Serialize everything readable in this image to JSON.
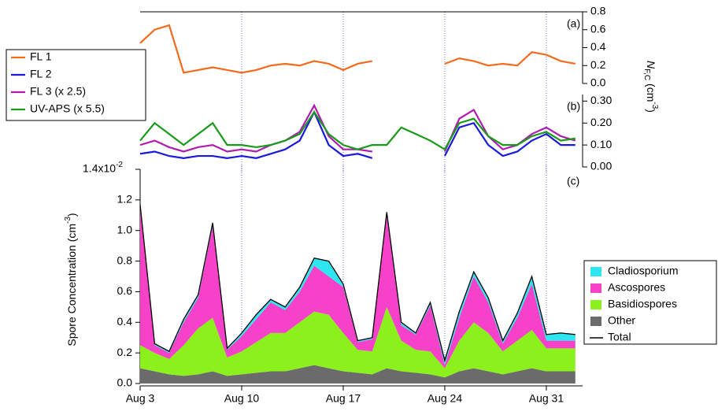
{
  "chart_data": [
    {
      "type": "line",
      "panel_label": "(a)",
      "y_label_parts": [
        "N",
        "F,C",
        " (cm",
        "-3",
        ")"
      ],
      "x": [
        3,
        4,
        5,
        6,
        7,
        8,
        9,
        10,
        11,
        12,
        13,
        14,
        15,
        16,
        17,
        18,
        19,
        20,
        21,
        22,
        23,
        24,
        25,
        26,
        27,
        28,
        29,
        30,
        31,
        32,
        33
      ],
      "xlim": [
        3,
        33.5
      ],
      "xticks": [
        {
          "value": 3,
          "label": "Aug 3"
        },
        {
          "value": 10,
          "label": "Aug 10"
        },
        {
          "value": 17,
          "label": "Aug 17"
        },
        {
          "value": 24,
          "label": "Aug 24"
        },
        {
          "value": 31,
          "label": "Aug 31"
        }
      ],
      "ylim": [
        0,
        0.8
      ],
      "yticks": [
        {
          "value": 0,
          "label": "0.0"
        },
        0.2,
        0.4,
        0.6,
        0.8
      ],
      "grid": true,
      "series": [
        {
          "name": "FL 1",
          "color": "#f26b1d",
          "values": [
            0.45,
            0.6,
            0.65,
            0.12,
            0.15,
            0.18,
            0.15,
            0.12,
            0.15,
            0.2,
            0.22,
            0.2,
            0.25,
            0.22,
            0.15,
            0.22,
            0.25,
            null,
            null,
            null,
            null,
            0.22,
            0.28,
            0.25,
            0.2,
            0.22,
            0.2,
            0.35,
            0.32,
            0.25,
            0.22
          ]
        }
      ]
    },
    {
      "type": "line",
      "panel_label": "(b)",
      "x": [
        3,
        4,
        5,
        6,
        7,
        8,
        9,
        10,
        11,
        12,
        13,
        14,
        15,
        16,
        17,
        18,
        19,
        20,
        21,
        22,
        23,
        24,
        25,
        26,
        27,
        28,
        29,
        30,
        31,
        32,
        33
      ],
      "xlim": [
        3,
        33.5
      ],
      "xticks": [
        {
          "value": 3,
          "label": "Aug 3"
        },
        {
          "value": 10,
          "label": "Aug 10"
        },
        {
          "value": 17,
          "label": "Aug 17"
        },
        {
          "value": 24,
          "label": "Aug 24"
        },
        {
          "value": 31,
          "label": "Aug 31"
        }
      ],
      "ylim": [
        0,
        0.33
      ],
      "yticks": [
        {
          "value": 0,
          "label": "0.00"
        },
        {
          "value": 0.1,
          "label": "0.10"
        },
        {
          "value": 0.2,
          "label": "0.20"
        },
        {
          "value": 0.3,
          "label": "0.30"
        }
      ],
      "grid": true,
      "series": [
        {
          "name": "FL 2",
          "color": "#1a1adb",
          "values": [
            0.06,
            0.07,
            0.05,
            0.04,
            0.05,
            0.05,
            0.04,
            0.05,
            0.04,
            0.06,
            0.08,
            0.12,
            0.25,
            0.1,
            0.05,
            0.06,
            0.04,
            null,
            null,
            null,
            null,
            0.05,
            0.18,
            0.2,
            0.1,
            0.05,
            0.07,
            0.12,
            0.15,
            0.1,
            0.1
          ]
        },
        {
          "name": "FL 3 (x 2.5)",
          "color": "#b01cb0",
          "values": [
            0.1,
            0.12,
            0.09,
            0.07,
            0.09,
            0.1,
            0.07,
            0.08,
            0.07,
            0.1,
            0.12,
            0.16,
            0.28,
            0.14,
            0.08,
            0.08,
            0.07,
            null,
            null,
            null,
            null,
            0.07,
            0.22,
            0.26,
            0.14,
            0.08,
            0.1,
            0.15,
            0.18,
            0.14,
            0.12
          ]
        },
        {
          "name": "UV-APS (x 5.5)",
          "color": "#1a9a1a",
          "values": [
            0.12,
            0.2,
            0.15,
            0.1,
            0.15,
            0.2,
            0.1,
            0.1,
            0.09,
            0.1,
            0.12,
            0.15,
            0.25,
            0.15,
            0.1,
            0.08,
            0.1,
            0.1,
            0.18,
            0.15,
            0.12,
            0.08,
            0.2,
            0.22,
            0.14,
            0.1,
            0.1,
            0.14,
            0.16,
            0.12,
            0.13
          ]
        }
      ]
    },
    {
      "type": "area",
      "panel_label": "(c)",
      "y_label_parts": [
        "Spore Concentration (cm",
        "-3",
        ")"
      ],
      "x": [
        3,
        4,
        5,
        6,
        7,
        8,
        9,
        10,
        11,
        12,
        13,
        14,
        15,
        16,
        17,
        18,
        19,
        20,
        21,
        22,
        23,
        24,
        25,
        26,
        27,
        28,
        29,
        30,
        31,
        32,
        33
      ],
      "xlim": [
        3,
        33.5
      ],
      "xticks": [
        {
          "value": 3,
          "label": "Aug 3"
        },
        {
          "value": 10,
          "label": "Aug 10"
        },
        {
          "value": 17,
          "label": "Aug 17"
        },
        {
          "value": 24,
          "label": "Aug 24"
        },
        {
          "value": 31,
          "label": "Aug 31"
        }
      ],
      "ylim": [
        0,
        1.4
      ],
      "yticks": [
        {
          "value": 0,
          "label": "0.0"
        },
        0.2,
        0.4,
        0.6,
        0.8,
        {
          "value": 1,
          "label": "1.0"
        },
        1.2,
        {
          "value": 1.4,
          "label": "1.4x10"
        }
      ],
      "ytick_exponent": "-2",
      "grid": true,
      "legend_order": [
        3,
        2,
        1,
        0,
        4
      ],
      "series": [
        {
          "name": "Other",
          "color": "#6b6b6b",
          "stacked": true,
          "values": [
            0.1,
            0.08,
            0.06,
            0.05,
            0.06,
            0.08,
            0.05,
            0.06,
            0.07,
            0.08,
            0.08,
            0.1,
            0.12,
            0.1,
            0.08,
            0.07,
            0.06,
            0.1,
            0.08,
            0.07,
            0.06,
            0.04,
            0.08,
            0.1,
            0.08,
            0.06,
            0.08,
            0.1,
            0.08,
            0.08,
            0.08
          ]
        },
        {
          "name": "Basidiospores",
          "color": "#8cf01c",
          "stacked": true,
          "values": [
            0.15,
            0.12,
            0.1,
            0.2,
            0.3,
            0.35,
            0.12,
            0.15,
            0.2,
            0.25,
            0.25,
            0.3,
            0.35,
            0.35,
            0.25,
            0.15,
            0.15,
            0.4,
            0.2,
            0.15,
            0.15,
            0.06,
            0.2,
            0.3,
            0.25,
            0.15,
            0.2,
            0.25,
            0.15,
            0.15,
            0.15
          ]
        },
        {
          "name": "Ascospores",
          "color": "#f542c8",
          "stacked": true,
          "values": [
            0.9,
            0.05,
            0.04,
            0.15,
            0.2,
            0.6,
            0.05,
            0.1,
            0.15,
            0.2,
            0.15,
            0.2,
            0.3,
            0.25,
            0.3,
            0.05,
            0.08,
            0.6,
            0.1,
            0.1,
            0.3,
            0.02,
            0.15,
            0.3,
            0.2,
            0.05,
            0.15,
            0.3,
            0.05,
            0.05,
            0.05
          ]
        },
        {
          "name": "Cladiosporium",
          "color": "#2ee6f0",
          "stacked": true,
          "values": [
            0.02,
            0.01,
            0.01,
            0.02,
            0.02,
            0.02,
            0.01,
            0.02,
            0.03,
            0.02,
            0.02,
            0.03,
            0.05,
            0.1,
            0.02,
            0.01,
            0.01,
            0.02,
            0.02,
            0.01,
            0.02,
            0.03,
            0.04,
            0.03,
            0.03,
            0.02,
            0.03,
            0.05,
            0.04,
            0.05,
            0.04
          ]
        },
        {
          "name": "Total",
          "color": "#000000",
          "stacked": false,
          "values": [
            1.17,
            0.26,
            0.21,
            0.42,
            0.58,
            1.05,
            0.23,
            0.33,
            0.45,
            0.55,
            0.5,
            0.63,
            0.82,
            0.8,
            0.65,
            0.28,
            0.3,
            1.12,
            0.4,
            0.33,
            0.53,
            0.15,
            0.47,
            0.73,
            0.56,
            0.28,
            0.46,
            0.7,
            0.32,
            0.33,
            0.32
          ]
        }
      ]
    }
  ]
}
